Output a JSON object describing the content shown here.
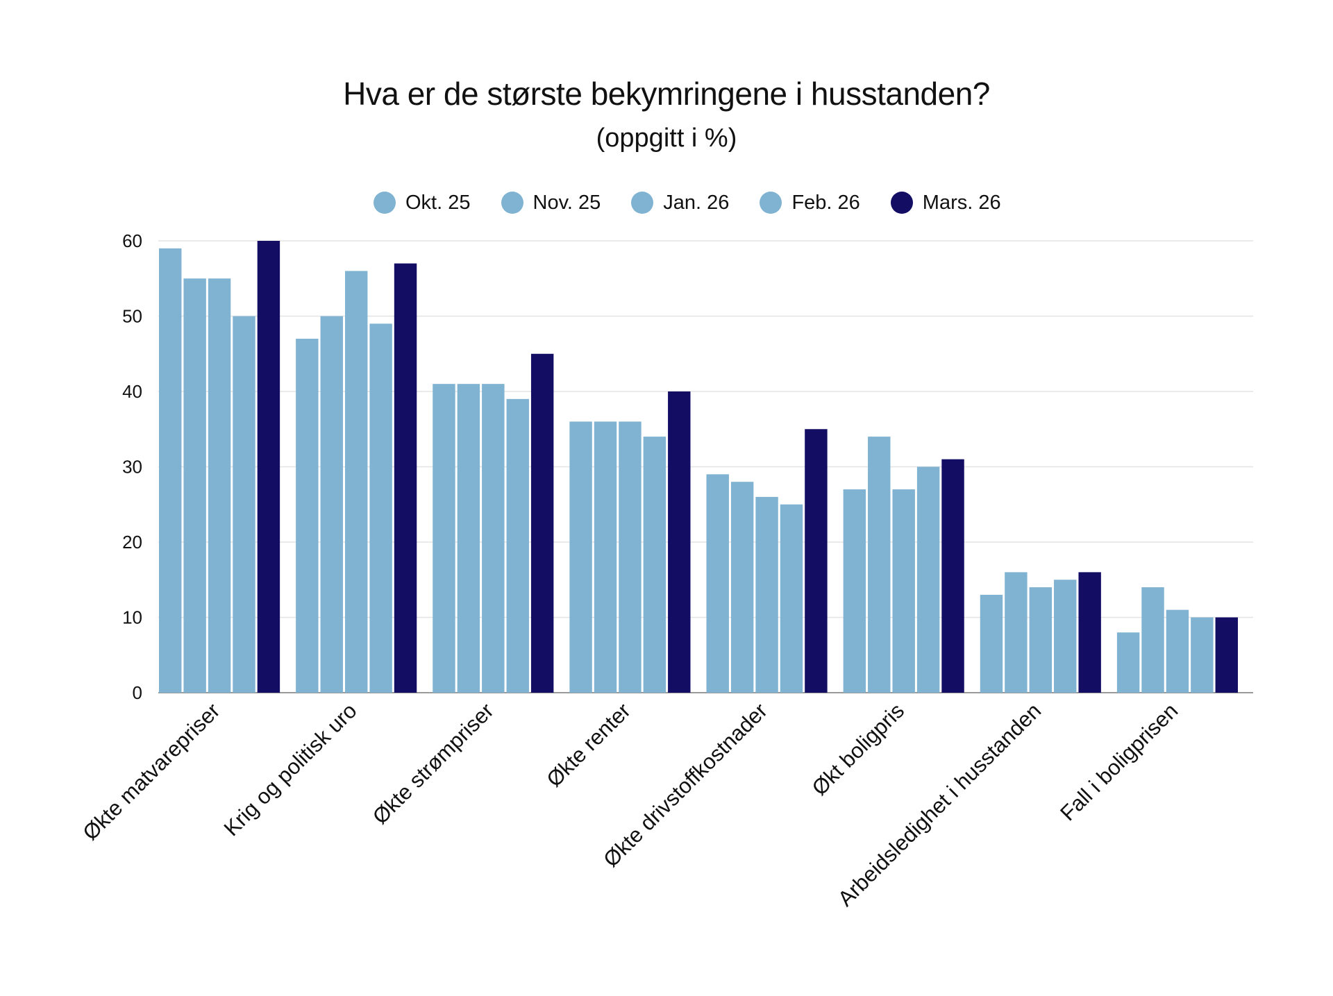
{
  "chart_data": {
    "type": "bar",
    "title": "Hva er de største bekymringene i husstanden?",
    "subtitle": "(oppgitt i %)",
    "xlabel": "",
    "ylabel": "",
    "ylim": [
      0,
      60
    ],
    "yticks": [
      0,
      10,
      20,
      30,
      40,
      50,
      60
    ],
    "grid": true,
    "legend_position": "top-center",
    "categories": [
      "Økte matvarepriser",
      "Krig og politisk uro",
      "Økte strømpriser",
      "Økte renter",
      "Økte drivstoffkostnader",
      "Økt boligpris",
      "Arbeidsledighet i husstanden",
      "Fall i boligprisen"
    ],
    "series": [
      {
        "name": "Okt. 25",
        "color": "#80b3d2",
        "values": [
          59,
          47,
          41,
          36,
          29,
          27,
          13,
          8
        ]
      },
      {
        "name": "Nov. 25",
        "color": "#80b3d2",
        "values": [
          55,
          50,
          41,
          36,
          28,
          34,
          16,
          14
        ]
      },
      {
        "name": "Jan. 26",
        "color": "#80b3d2",
        "values": [
          55,
          56,
          41,
          36,
          26,
          27,
          14,
          11
        ]
      },
      {
        "name": "Feb. 26",
        "color": "#80b3d2",
        "values": [
          50,
          49,
          39,
          34,
          25,
          30,
          15,
          10
        ]
      },
      {
        "name": "Mars. 26",
        "color": "#140d64",
        "values": [
          60,
          57,
          45,
          40,
          35,
          31,
          16,
          10
        ]
      }
    ]
  }
}
